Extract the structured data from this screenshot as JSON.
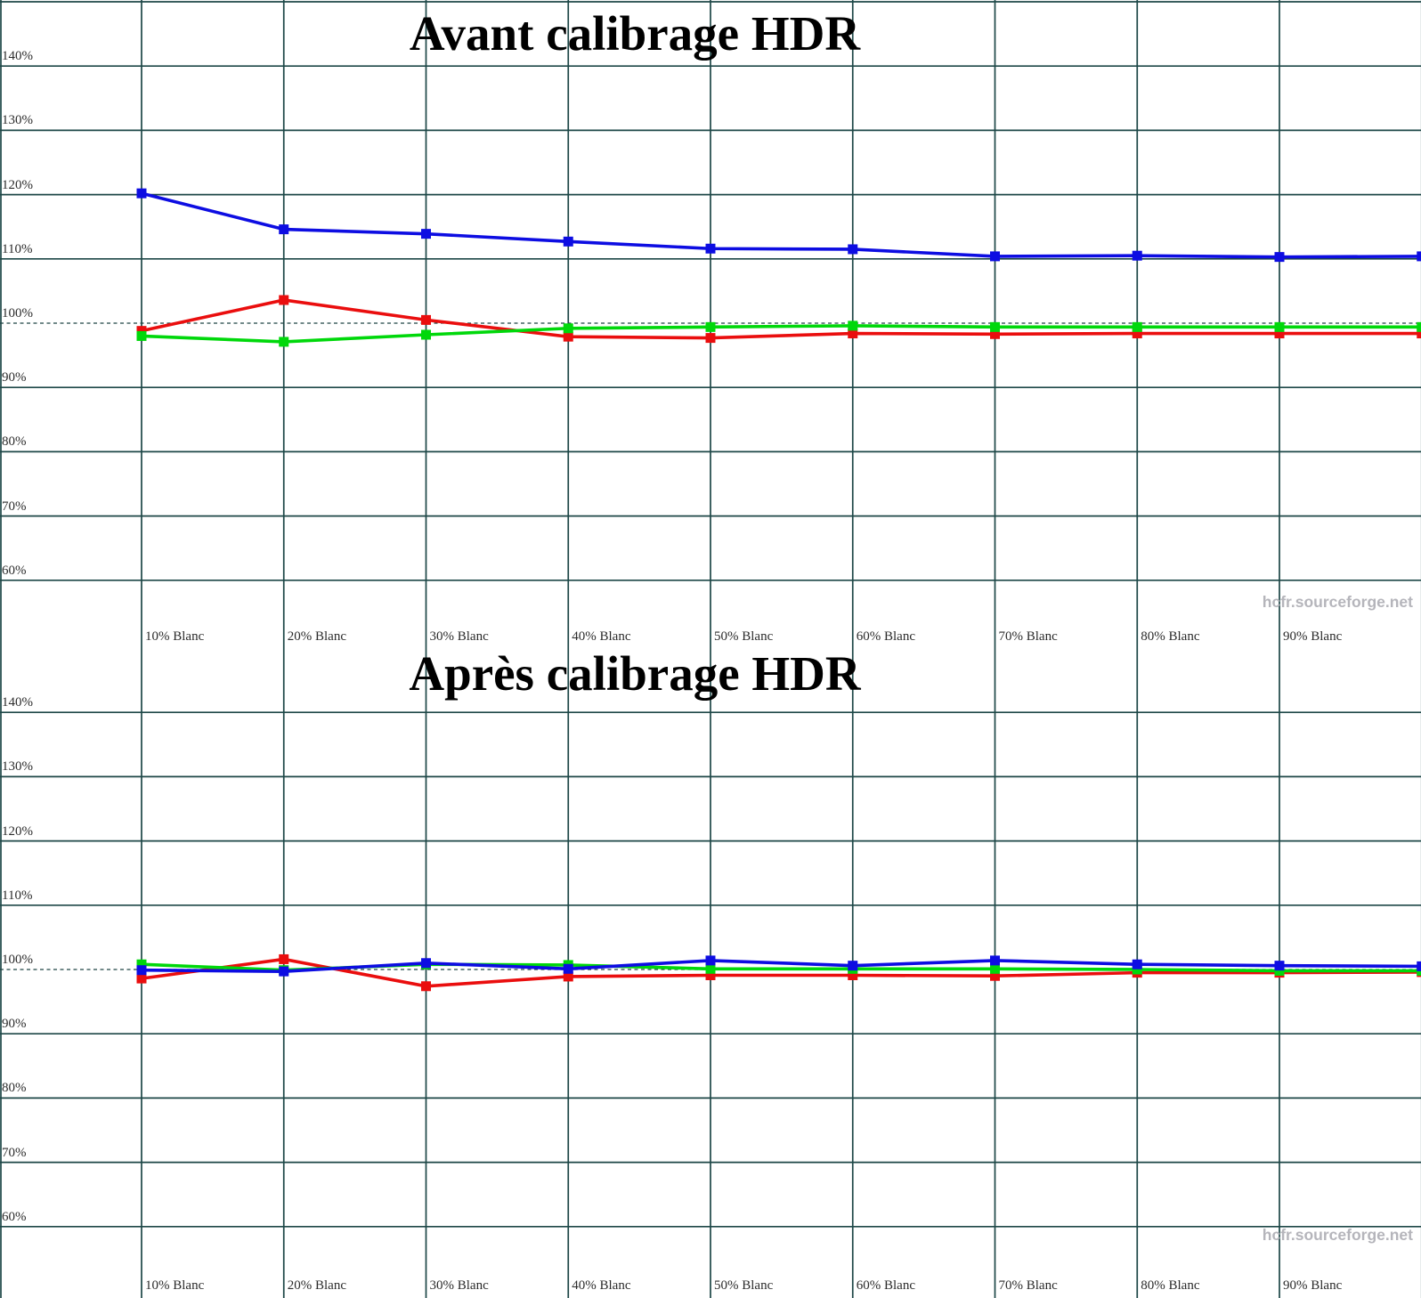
{
  "colors": {
    "grid": "#1d4747",
    "reference_dashed": "#1f4444",
    "red_series": "#ea0e0e",
    "green_series": "#00d80b",
    "blue_series": "#0d0de2",
    "watermark": "#b5b5bb"
  },
  "chart_data": [
    {
      "type": "line",
      "title": "Avant calibrage HDR",
      "watermark": "hcfr.sourceforge.net",
      "ylim": [
        60,
        150
      ],
      "y_step": 10,
      "grid": true,
      "legend": false,
      "reference_line": 100,
      "x_percent": [
        10,
        20,
        30,
        40,
        50,
        60,
        70,
        80,
        90,
        100
      ],
      "x_tick_labels": [
        "10% Blanc",
        "20% Blanc",
        "30% Blanc",
        "40% Blanc",
        "50% Blanc",
        "60% Blanc",
        "70% Blanc",
        "80% Blanc",
        "90% Blanc"
      ],
      "y_tick_labels": [
        "140%",
        "130%",
        "120%",
        "110%",
        "100%",
        "90%",
        "80%",
        "70%",
        "60%"
      ],
      "series": [
        {
          "name": "red",
          "color": "#ea0e0e",
          "values": [
            98.8,
            103.6,
            100.5,
            97.9,
            97.7,
            98.4,
            98.3,
            98.4,
            98.4,
            98.4
          ]
        },
        {
          "name": "green",
          "color": "#00d80b",
          "values": [
            98.0,
            97.1,
            98.2,
            99.2,
            99.4,
            99.6,
            99.4,
            99.4,
            99.4,
            99.4
          ]
        },
        {
          "name": "blue",
          "color": "#0d0de2",
          "values": [
            120.2,
            114.6,
            113.9,
            112.7,
            111.6,
            111.5,
            110.4,
            110.5,
            110.3,
            110.4
          ]
        }
      ]
    },
    {
      "type": "line",
      "title": "Après calibrage HDR",
      "watermark": "hcfr.sourceforge.net",
      "ylim": [
        60,
        150
      ],
      "y_step": 10,
      "grid": true,
      "legend": false,
      "reference_line": 100,
      "x_percent": [
        10,
        20,
        30,
        40,
        50,
        60,
        70,
        80,
        90,
        100
      ],
      "x_tick_labels": [
        "10% Blanc",
        "20% Blanc",
        "30% Blanc",
        "40% Blanc",
        "50% Blanc",
        "60% Blanc",
        "70% Blanc",
        "80% Blanc",
        "90% Blanc"
      ],
      "y_tick_labels": [
        "140%",
        "130%",
        "120%",
        "110%",
        "100%",
        "90%",
        "80%",
        "70%",
        "60%"
      ],
      "series": [
        {
          "name": "red",
          "color": "#ea0e0e",
          "values": [
            98.6,
            101.6,
            97.4,
            98.9,
            99.1,
            99.1,
            99.0,
            99.5,
            99.5,
            99.6
          ]
        },
        {
          "name": "green",
          "color": "#00d80b",
          "values": [
            100.8,
            99.9,
            100.8,
            100.7,
            100.1,
            100.1,
            100.1,
            100.0,
            99.8,
            99.8
          ]
        },
        {
          "name": "blue",
          "color": "#0d0de2",
          "values": [
            99.9,
            99.7,
            101.0,
            100.1,
            101.4,
            100.6,
            101.4,
            100.8,
            100.6,
            100.5
          ]
        }
      ]
    }
  ]
}
